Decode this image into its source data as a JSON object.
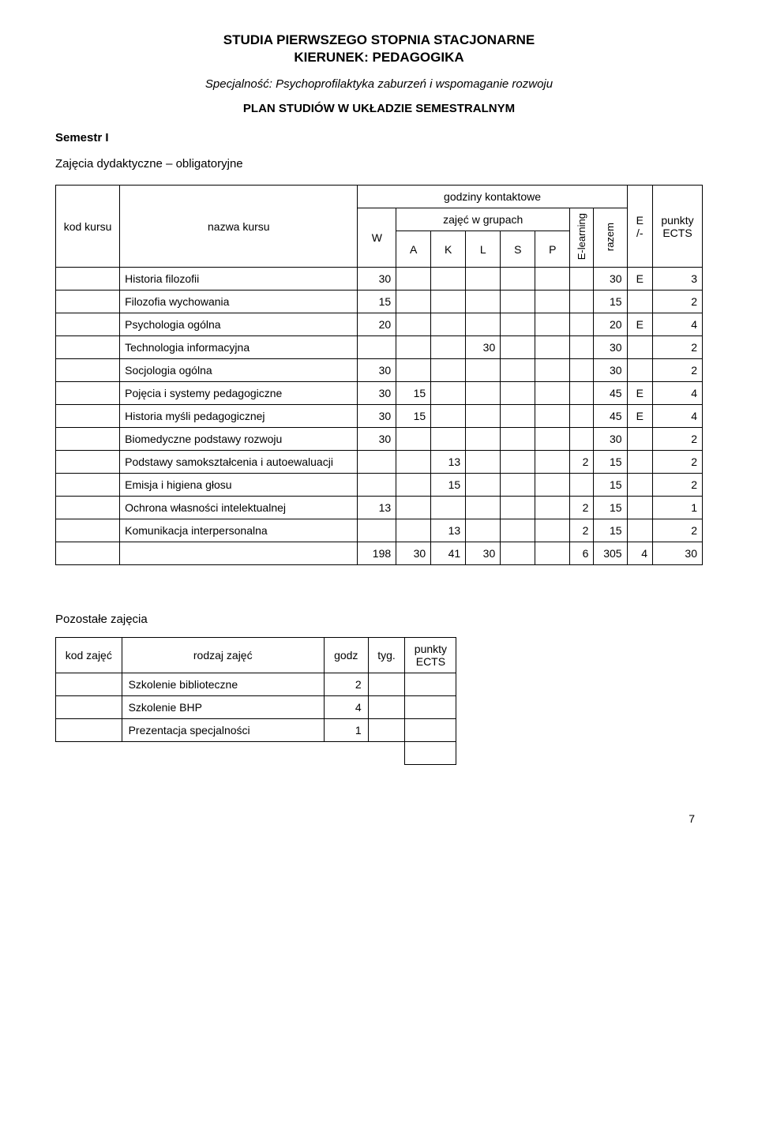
{
  "header": {
    "line1": "STUDIA PIERWSZEGO STOPNIA STACJONARNE",
    "line2": "KIERUNEK: PEDAGOGIKA",
    "specialty": "Specjalność: Psychoprofilaktyka zaburzeń i wspomaganie rozwoju",
    "plan_title": "PLAN STUDIÓW W UKŁADZIE SEMESTRALNYM",
    "semester": "Semestr I",
    "subtitle": "Zajęcia dydaktyczne – obligatoryjne"
  },
  "table": {
    "headers": {
      "kod": "kod kursu",
      "nazwa": "nazwa kursu",
      "kontakt": "godziny kontaktowe",
      "grupach": "zajęć w grupach",
      "W": "W",
      "A": "A",
      "K": "K",
      "L": "L",
      "S": "S",
      "P": "P",
      "elearning": "E-learning",
      "razem": "razem",
      "E": "E /-",
      "ects": "punkty ECTS"
    },
    "rows": [
      {
        "nazwa": "Historia filozofii",
        "W": "30",
        "A": "",
        "K": "",
        "L": "",
        "S": "",
        "P": "",
        "El": "",
        "razem": "30",
        "E": "E",
        "ects": "3"
      },
      {
        "nazwa": "Filozofia wychowania",
        "W": "15",
        "A": "",
        "K": "",
        "L": "",
        "S": "",
        "P": "",
        "El": "",
        "razem": "15",
        "E": "",
        "ects": "2"
      },
      {
        "nazwa": "Psychologia ogólna",
        "W": "20",
        "A": "",
        "K": "",
        "L": "",
        "S": "",
        "P": "",
        "El": "",
        "razem": "20",
        "E": "E",
        "ects": "4"
      },
      {
        "nazwa": "Technologia informacyjna",
        "W": "",
        "A": "",
        "K": "",
        "L": "30",
        "S": "",
        "P": "",
        "El": "",
        "razem": "30",
        "E": "",
        "ects": "2"
      },
      {
        "nazwa": "Socjologia ogólna",
        "W": "30",
        "A": "",
        "K": "",
        "L": "",
        "S": "",
        "P": "",
        "El": "",
        "razem": "30",
        "E": "",
        "ects": "2"
      },
      {
        "nazwa": "Pojęcia i systemy pedagogiczne",
        "W": "30",
        "A": "15",
        "K": "",
        "L": "",
        "S": "",
        "P": "",
        "El": "",
        "razem": "45",
        "E": "E",
        "ects": "4"
      },
      {
        "nazwa": "Historia myśli pedagogicznej",
        "W": "30",
        "A": "15",
        "K": "",
        "L": "",
        "S": "",
        "P": "",
        "El": "",
        "razem": "45",
        "E": "E",
        "ects": "4"
      },
      {
        "nazwa": "Biomedyczne podstawy rozwoju",
        "W": "30",
        "A": "",
        "K": "",
        "L": "",
        "S": "",
        "P": "",
        "El": "",
        "razem": "30",
        "E": "",
        "ects": "2"
      },
      {
        "nazwa": "Podstawy samokształcenia i autoewaluacji",
        "W": "",
        "A": "",
        "K": "13",
        "L": "",
        "S": "",
        "P": "",
        "El": "2",
        "razem": "15",
        "E": "",
        "ects": "2"
      },
      {
        "nazwa": "Emisja i higiena głosu",
        "W": "",
        "A": "",
        "K": "15",
        "L": "",
        "S": "",
        "P": "",
        "El": "",
        "razem": "15",
        "E": "",
        "ects": "2"
      },
      {
        "nazwa": "Ochrona własności intelektualnej",
        "W": "13",
        "A": "",
        "K": "",
        "L": "",
        "S": "",
        "P": "",
        "El": "2",
        "razem": "15",
        "E": "",
        "ects": "1"
      },
      {
        "nazwa": "Komunikacja interpersonalna",
        "W": "",
        "A": "",
        "K": "13",
        "L": "",
        "S": "",
        "P": "",
        "El": "2",
        "razem": "15",
        "E": "",
        "ects": "2"
      }
    ],
    "totals": {
      "W": "198",
      "A": "30",
      "K": "41",
      "L": "30",
      "S": "",
      "P": "",
      "El": "6",
      "razem": "305",
      "E": "4",
      "ects": "30"
    }
  },
  "extra": {
    "title": "Pozostałe zajęcia",
    "headers": {
      "kod": "kod zajęć",
      "rodzaj": "rodzaj zajęć",
      "godz": "godz",
      "tyg": "tyg.",
      "ects": "punkty ECTS"
    },
    "rows": [
      {
        "rodzaj": "Szkolenie biblioteczne",
        "godz": "2",
        "tyg": "",
        "ects": ""
      },
      {
        "rodzaj": "Szkolenie BHP",
        "godz": "4",
        "tyg": "",
        "ects": ""
      },
      {
        "rodzaj": "Prezentacja specjalności",
        "godz": "1",
        "tyg": "",
        "ects": ""
      }
    ]
  },
  "page_number": "7",
  "style": {
    "font_family": "Arial",
    "text_color": "#000000",
    "background_color": "#ffffff",
    "border_color": "#000000",
    "header_font_size": 17,
    "body_font_size": 14
  }
}
